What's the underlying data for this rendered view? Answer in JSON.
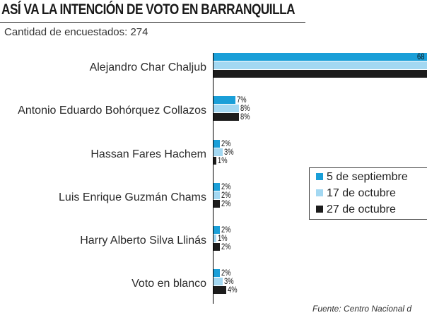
{
  "title": "ASÍ VA LA INTENCIÓN DE VOTO EN BARRANQUILLA",
  "subtitle": "Cantidad de encuestados: 274",
  "source": "Fuente: Centro Nacional d",
  "colors": {
    "sep": "#1a9fd8",
    "oct17": "#a3d8f2",
    "oct27": "#1c1c1c"
  },
  "chart_data": {
    "type": "bar",
    "orientation": "horizontal",
    "categories": [
      "Alejandro Char Chaljub",
      "Antonio Eduardo Bohórquez Collazos",
      "Hassan Fares Hachem",
      "Luis Enrique Guzmán Chams",
      "Harry Alberto Silva Llinás",
      "Voto en blanco"
    ],
    "series": [
      {
        "name": "5 de septiembre",
        "values": [
          68,
          7,
          2,
          2,
          2,
          2
        ],
        "labels": [
          "68",
          "7%",
          "2%",
          "2%",
          "2%",
          "2%"
        ]
      },
      {
        "name": "17 de octubre",
        "values": [
          68,
          8,
          3,
          2,
          1,
          3
        ],
        "labels": [
          "",
          "8%",
          "3%",
          "2%",
          "1%",
          "3%"
        ]
      },
      {
        "name": "27 de octubre",
        "values": [
          68,
          8,
          1,
          2,
          2,
          4
        ],
        "labels": [
          "",
          "8%",
          "1%",
          "2%",
          "2%",
          "4%"
        ]
      }
    ],
    "unit": "%",
    "legend_position": "right"
  }
}
